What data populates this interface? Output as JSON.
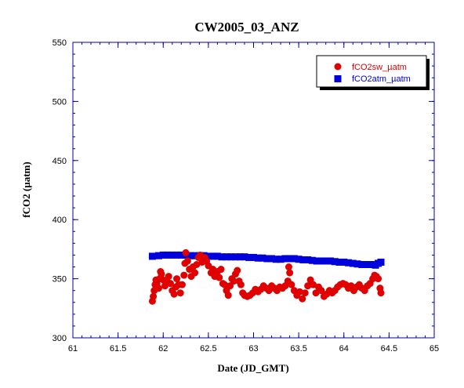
{
  "chart_data": {
    "type": "scatter",
    "title": "CW2005_03_ANZ",
    "xlabel": "Date (JD_GMT)",
    "ylabel": "fCO2 (µatm)",
    "xlim": [
      61,
      65
    ],
    "ylim": [
      300,
      550
    ],
    "xticks": [
      "61",
      "61.5",
      "62",
      "62.5",
      "63",
      "63.5",
      "64",
      "64.5",
      "65"
    ],
    "yticks": [
      "300",
      "350",
      "400",
      "450",
      "500",
      "550"
    ],
    "legend_position": "top-right",
    "series": [
      {
        "name": "fCO2sw_µatm",
        "color": "#e00000",
        "marker": "circle",
        "points": [
          [
            61.88,
            331
          ],
          [
            61.89,
            335
          ],
          [
            61.9,
            340
          ],
          [
            61.91,
            345
          ],
          [
            61.92,
            349
          ],
          [
            61.93,
            346
          ],
          [
            61.95,
            342
          ],
          [
            61.96,
            350
          ],
          [
            61.97,
            356
          ],
          [
            61.98,
            354
          ],
          [
            62.0,
            349
          ],
          [
            62.02,
            344
          ],
          [
            62.04,
            348
          ],
          [
            62.06,
            352
          ],
          [
            62.08,
            346
          ],
          [
            62.1,
            340
          ],
          [
            62.12,
            337
          ],
          [
            62.14,
            343
          ],
          [
            62.15,
            350
          ],
          [
            62.17,
            345
          ],
          [
            62.19,
            338
          ],
          [
            62.21,
            345
          ],
          [
            62.23,
            353
          ],
          [
            62.24,
            363
          ],
          [
            62.25,
            372
          ],
          [
            62.27,
            365
          ],
          [
            62.29,
            358
          ],
          [
            62.31,
            352
          ],
          [
            62.33,
            360
          ],
          [
            62.35,
            355
          ],
          [
            62.37,
            362
          ],
          [
            62.39,
            368
          ],
          [
            62.41,
            370
          ],
          [
            62.43,
            364
          ],
          [
            62.46,
            368
          ],
          [
            62.48,
            365
          ],
          [
            62.5,
            361
          ],
          [
            62.53,
            355
          ],
          [
            62.55,
            358
          ],
          [
            62.57,
            352
          ],
          [
            62.6,
            356
          ],
          [
            62.62,
            351
          ],
          [
            62.64,
            358
          ],
          [
            62.66,
            346
          ],
          [
            62.68,
            345
          ],
          [
            62.7,
            340
          ],
          [
            62.72,
            336
          ],
          [
            62.74,
            344
          ],
          [
            62.76,
            350
          ],
          [
            62.78,
            348
          ],
          [
            62.8,
            354
          ],
          [
            62.82,
            357
          ],
          [
            62.84,
            348
          ],
          [
            62.86,
            345
          ],
          [
            62.88,
            338
          ],
          [
            62.9,
            336
          ],
          [
            62.93,
            335
          ],
          [
            62.96,
            336
          ],
          [
            62.99,
            338
          ],
          [
            63.02,
            341
          ],
          [
            63.05,
            339
          ],
          [
            63.08,
            341
          ],
          [
            63.11,
            344
          ],
          [
            63.14,
            342
          ],
          [
            63.17,
            340
          ],
          [
            63.2,
            344
          ],
          [
            63.23,
            342
          ],
          [
            63.26,
            340
          ],
          [
            63.29,
            343
          ],
          [
            63.32,
            342
          ],
          [
            63.35,
            344
          ],
          [
            63.38,
            348
          ],
          [
            63.39,
            360
          ],
          [
            63.4,
            355
          ],
          [
            63.42,
            345
          ],
          [
            63.45,
            340
          ],
          [
            63.48,
            336
          ],
          [
            63.51,
            339
          ],
          [
            63.54,
            333
          ],
          [
            63.57,
            338
          ],
          [
            63.6,
            344
          ],
          [
            63.63,
            349
          ],
          [
            63.66,
            345
          ],
          [
            63.69,
            338
          ],
          [
            63.72,
            343
          ],
          [
            63.75,
            340
          ],
          [
            63.78,
            335
          ],
          [
            63.81,
            337
          ],
          [
            63.84,
            340
          ],
          [
            63.87,
            338
          ],
          [
            63.9,
            340
          ],
          [
            63.93,
            343
          ],
          [
            63.96,
            345
          ],
          [
            63.99,
            346
          ],
          [
            64.02,
            345
          ],
          [
            64.05,
            342
          ],
          [
            64.08,
            344
          ],
          [
            64.11,
            340
          ],
          [
            64.14,
            343
          ],
          [
            64.17,
            345
          ],
          [
            64.2,
            342
          ],
          [
            64.23,
            340
          ],
          [
            64.26,
            344
          ],
          [
            64.29,
            346
          ],
          [
            64.32,
            350
          ],
          [
            64.34,
            353
          ],
          [
            64.36,
            352
          ],
          [
            64.38,
            350
          ],
          [
            64.4,
            342
          ],
          [
            64.41,
            338
          ]
        ]
      },
      {
        "name": "fCO2atm_µatm",
        "color": "#0000dd",
        "marker": "square",
        "points": [
          [
            61.88,
            369
          ],
          [
            61.95,
            369.5
          ],
          [
            62.0,
            370
          ],
          [
            62.05,
            370
          ],
          [
            62.1,
            370
          ],
          [
            62.15,
            370
          ],
          [
            62.2,
            370
          ],
          [
            62.25,
            370
          ],
          [
            62.3,
            369.5
          ],
          [
            62.35,
            369.5
          ],
          [
            62.4,
            369.5
          ],
          [
            62.45,
            369.5
          ],
          [
            62.5,
            369
          ],
          [
            62.55,
            369
          ],
          [
            62.6,
            369
          ],
          [
            62.65,
            368.5
          ],
          [
            62.7,
            368.5
          ],
          [
            62.75,
            368.5
          ],
          [
            62.8,
            368.5
          ],
          [
            62.85,
            368.5
          ],
          [
            62.9,
            368.5
          ],
          [
            62.95,
            368
          ],
          [
            63.0,
            368
          ],
          [
            63.05,
            367.5
          ],
          [
            63.1,
            367.5
          ],
          [
            63.15,
            367
          ],
          [
            63.2,
            367
          ],
          [
            63.25,
            366.5
          ],
          [
            63.3,
            366.5
          ],
          [
            63.35,
            367
          ],
          [
            63.4,
            367
          ],
          [
            63.45,
            367
          ],
          [
            63.5,
            366.5
          ],
          [
            63.55,
            366
          ],
          [
            63.6,
            366
          ],
          [
            63.65,
            365.5
          ],
          [
            63.7,
            365
          ],
          [
            63.75,
            365
          ],
          [
            63.8,
            365
          ],
          [
            63.85,
            365
          ],
          [
            63.9,
            364.5
          ],
          [
            63.95,
            364
          ],
          [
            64.0,
            364
          ],
          [
            64.05,
            363.5
          ],
          [
            64.1,
            363
          ],
          [
            64.15,
            362.5
          ],
          [
            64.2,
            362
          ],
          [
            64.25,
            362
          ],
          [
            64.3,
            362
          ],
          [
            64.35,
            361.5
          ],
          [
            64.38,
            363
          ],
          [
            64.41,
            364
          ]
        ]
      }
    ]
  }
}
